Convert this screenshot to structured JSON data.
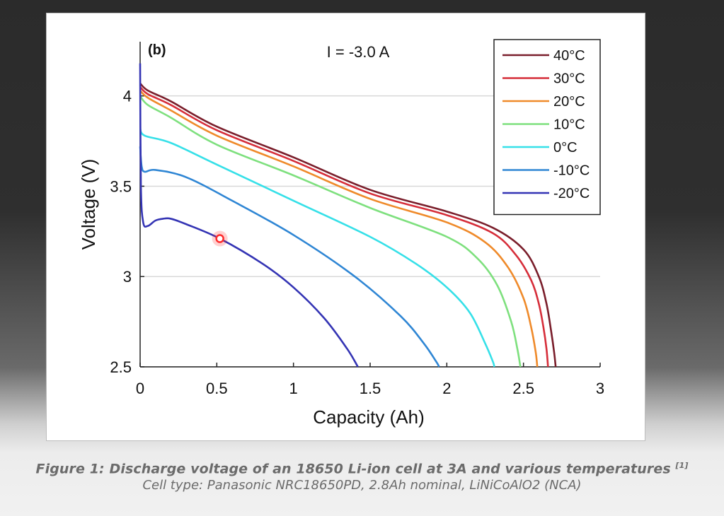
{
  "caption": {
    "title": "Figure 1: Discharge voltage of an 18650 Li-ion cell at 3A and various temperatures",
    "reference": "[1]",
    "subtitle": "Cell type: Panasonic NRC18650PD, 2.8Ah nominal, LiNiCoAlO2 (NCA)"
  },
  "chart_data": {
    "type": "line",
    "panel_label": "(b)",
    "title": "I = -3.0 A",
    "xlabel": "Capacity (Ah)",
    "ylabel": "Voltage (V)",
    "xlim": [
      0,
      3
    ],
    "ylim": [
      2.5,
      4.3
    ],
    "xticks": [
      0,
      0.5,
      1,
      1.5,
      2,
      2.5,
      3
    ],
    "xtick_labels": [
      "0",
      "0.5",
      "1",
      "1.5",
      "2",
      "2.5",
      "3"
    ],
    "yticks": [
      2.5,
      3,
      3.5,
      4
    ],
    "ytick_labels": [
      "2.5",
      "3",
      "3.5",
      "4"
    ],
    "grid": "horizontal",
    "legend_position": "top-right",
    "highlight_point": {
      "x": 0.52,
      "y": 3.21,
      "color": "#ff2a2a"
    },
    "series": [
      {
        "name": "40°C",
        "color": "#7a1e2b",
        "x": [
          0,
          0.05,
          0.2,
          0.5,
          1.0,
          1.5,
          2.0,
          2.3,
          2.5,
          2.6,
          2.65,
          2.68,
          2.7,
          2.71
        ],
        "y": [
          4.07,
          4.03,
          3.97,
          3.83,
          3.66,
          3.48,
          3.36,
          3.27,
          3.15,
          3.0,
          2.85,
          2.7,
          2.58,
          2.5
        ]
      },
      {
        "name": "30°C",
        "color": "#d62e3a",
        "x": [
          0,
          0.05,
          0.2,
          0.5,
          1.0,
          1.5,
          2.0,
          2.3,
          2.45,
          2.55,
          2.6,
          2.63,
          2.65,
          2.66
        ],
        "y": [
          4.05,
          4.01,
          3.95,
          3.81,
          3.64,
          3.46,
          3.34,
          3.24,
          3.12,
          2.98,
          2.85,
          2.72,
          2.6,
          2.5
        ]
      },
      {
        "name": "20°C",
        "color": "#ef8a2a",
        "x": [
          0,
          0.05,
          0.2,
          0.5,
          1.0,
          1.5,
          2.0,
          2.25,
          2.4,
          2.5,
          2.55,
          2.58,
          2.59
        ],
        "y": [
          4.03,
          3.99,
          3.92,
          3.78,
          3.61,
          3.43,
          3.3,
          3.19,
          3.05,
          2.88,
          2.72,
          2.58,
          2.5
        ]
      },
      {
        "name": "10°C",
        "color": "#7ee07e",
        "x": [
          0,
          0.05,
          0.2,
          0.5,
          1.0,
          1.5,
          2.0,
          2.2,
          2.33,
          2.42,
          2.46,
          2.48
        ],
        "y": [
          4.0,
          3.95,
          3.88,
          3.73,
          3.56,
          3.38,
          3.22,
          3.1,
          2.95,
          2.75,
          2.6,
          2.5
        ]
      },
      {
        "name": "0°C",
        "color": "#36e0e8",
        "x": [
          0,
          0.03,
          0.2,
          0.5,
          1.0,
          1.5,
          1.8,
          2.0,
          2.15,
          2.25,
          2.3,
          2.31
        ],
        "y": [
          3.82,
          3.78,
          3.74,
          3.62,
          3.42,
          3.22,
          3.07,
          2.94,
          2.8,
          2.63,
          2.53,
          2.5
        ]
      },
      {
        "name": "-10°C",
        "color": "#2f86d4",
        "x": [
          0,
          0.01,
          0.03,
          0.1,
          0.3,
          0.6,
          1.0,
          1.4,
          1.7,
          1.85,
          1.93,
          1.95
        ],
        "y": [
          3.72,
          3.61,
          3.58,
          3.59,
          3.55,
          3.42,
          3.23,
          3.0,
          2.78,
          2.63,
          2.53,
          2.5
        ]
      },
      {
        "name": "-20°C",
        "color": "#3434b4",
        "x": [
          0,
          0.005,
          0.02,
          0.05,
          0.1,
          0.15,
          0.2,
          0.3,
          0.52,
          0.8,
          1.0,
          1.2,
          1.35,
          1.42
        ],
        "y": [
          4.18,
          3.5,
          3.3,
          3.28,
          3.31,
          3.32,
          3.32,
          3.29,
          3.21,
          3.07,
          2.94,
          2.77,
          2.6,
          2.5
        ]
      }
    ]
  }
}
